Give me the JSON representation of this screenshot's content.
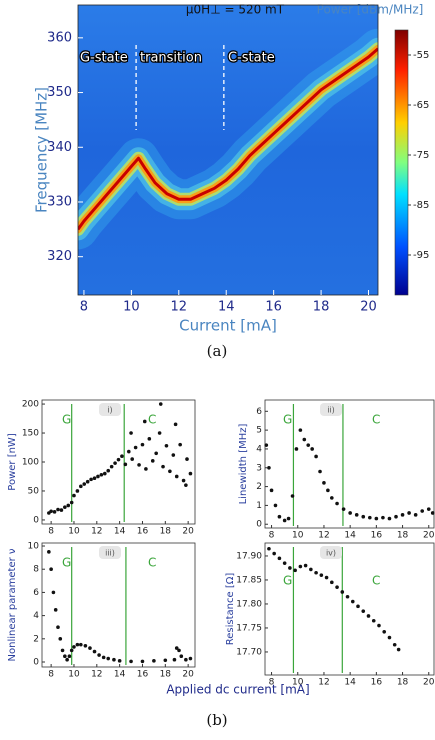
{
  "chart_data": [
    {
      "type": "heatmap",
      "title": "μ0H⊥ = 520 mT",
      "xlabel": "Current [mA]",
      "ylabel": "Frequency [MHz]",
      "x": [
        7.75,
        8,
        8.5,
        9,
        9.5,
        10,
        10.3,
        10.6,
        11,
        11.5,
        12,
        12.5,
        13,
        13.5,
        14,
        14.5,
        15,
        15.5,
        16,
        16.5,
        17,
        17.5,
        18,
        18.5,
        19,
        19.5,
        20,
        20.4
      ],
      "values": [
        325,
        326.5,
        329,
        331.5,
        334,
        336.5,
        338,
        336,
        333.5,
        331.5,
        330.5,
        330.5,
        331.5,
        332.5,
        334,
        336,
        338.5,
        340.5,
        342.5,
        344.5,
        346.5,
        348.5,
        350.5,
        352,
        353.5,
        355,
        356.5,
        358
      ],
      "xlim": [
        7.75,
        20.4
      ],
      "ylim": [
        313,
        366
      ],
      "xticks": [
        8,
        10,
        12,
        14,
        16,
        18,
        20
      ],
      "yticks": [
        320,
        330,
        340,
        350,
        360
      ],
      "annotations": [
        "G-state",
        "transition",
        "C-state"
      ],
      "boundaries": [
        10.2,
        13.9
      ],
      "colorbar": {
        "label": "Power [dBm/MHz]",
        "lim": [
          -103,
          -50
        ],
        "ticks": [
          -55,
          -65,
          -75,
          -85,
          -95
        ],
        "colormap": "jet"
      }
    },
    {
      "type": "scatter",
      "panel": "i)",
      "ylabel": "Power [nW]",
      "x": [
        7.8,
        8,
        8.3,
        8.6,
        8.9,
        9.2,
        9.5,
        9.8,
        10,
        10.3,
        10.6,
        10.9,
        11.2,
        11.5,
        11.8,
        12.1,
        12.4,
        12.7,
        13,
        13.3,
        13.6,
        13.9,
        14.2,
        14.5,
        14.8,
        15.1,
        15.4,
        15.7,
        16,
        16.3,
        16.6,
        16.9,
        17.2,
        17.5,
        17.8,
        18.1,
        18.4,
        18.7,
        19,
        19.3,
        19.6,
        19.9,
        20.2,
        15,
        16.2,
        17.6,
        18.9,
        19.8
      ],
      "values": [
        12,
        15,
        14,
        18,
        17,
        22,
        25,
        30,
        42,
        50,
        58,
        62,
        66,
        70,
        72,
        75,
        78,
        80,
        85,
        92,
        98,
        104,
        110,
        96,
        118,
        105,
        125,
        95,
        130,
        88,
        140,
        102,
        115,
        150,
        92,
        128,
        84,
        112,
        75,
        130,
        68,
        105,
        80,
        150,
        170,
        200,
        165,
        60
      ],
      "xlim": [
        7.2,
        20.6
      ],
      "ylim": [
        -7,
        207
      ],
      "xticks": [
        8,
        10,
        12,
        14,
        16,
        18,
        20
      ],
      "yticks": [
        0,
        50,
        100,
        150,
        200
      ],
      "vlines": [
        9.8,
        14.4
      ],
      "annotations": [
        "G",
        "C"
      ]
    },
    {
      "type": "scatter",
      "panel": "ii)",
      "ylabel": "Linewidth [MHz]",
      "x": [
        7.6,
        7.8,
        8,
        8.3,
        8.6,
        9,
        9.3,
        9.6,
        9.9,
        10.2,
        10.5,
        10.8,
        11.1,
        11.4,
        11.7,
        12,
        12.3,
        12.6,
        13,
        13.5,
        14,
        14.5,
        15,
        15.5,
        16,
        16.5,
        17,
        17.5,
        18,
        18.5,
        19,
        19.5,
        20,
        20.3
      ],
      "values": [
        4.2,
        3,
        1.8,
        1,
        0.4,
        0.2,
        0.3,
        1.5,
        4,
        5,
        4.5,
        4.2,
        4,
        3.6,
        2.8,
        2.2,
        1.8,
        1.4,
        1.1,
        0.8,
        0.6,
        0.5,
        0.4,
        0.35,
        0.3,
        0.35,
        0.3,
        0.4,
        0.5,
        0.6,
        0.5,
        0.7,
        0.8,
        0.6
      ],
      "xlim": [
        7.5,
        20.4
      ],
      "ylim": [
        -0.2,
        6.6
      ],
      "xticks": [
        8,
        10,
        12,
        14,
        16,
        18,
        20
      ],
      "yticks": [
        0,
        1,
        2,
        3,
        4,
        5,
        6
      ],
      "vlines": [
        9.67,
        13.45
      ],
      "annotations": [
        "G",
        "C"
      ]
    },
    {
      "type": "scatter",
      "panel": "iii)",
      "ylabel": "Nonlinear parameter ν",
      "x": [
        7.8,
        8,
        8.2,
        8.4,
        8.6,
        8.8,
        9,
        9.2,
        9.4,
        9.6,
        9.8,
        10,
        10.3,
        10.6,
        11,
        11.4,
        11.8,
        12.2,
        12.6,
        13,
        13.5,
        14,
        15,
        16,
        17,
        18,
        18.8,
        19,
        19.2,
        19.4,
        19.8,
        20.2
      ],
      "values": [
        9.5,
        8,
        6,
        4.5,
        3,
        2,
        1,
        0.5,
        0.2,
        0.5,
        1,
        1.3,
        1.5,
        1.5,
        1.4,
        1.2,
        0.9,
        0.6,
        0.4,
        0.3,
        0.2,
        0.1,
        0.05,
        0.05,
        0.1,
        0.15,
        0.2,
        1.2,
        1,
        0.5,
        0.2,
        0.3
      ],
      "xlim": [
        7.2,
        20.6
      ],
      "ylim": [
        -0.43,
        10.26
      ],
      "xticks": [
        8,
        10,
        12,
        14,
        16,
        18,
        20
      ],
      "yticks": [
        0,
        2,
        4,
        6,
        8,
        10
      ],
      "vlines": [
        9.8,
        14.55
      ],
      "annotations": [
        "G",
        "C"
      ]
    },
    {
      "type": "scatter",
      "panel": "iv)",
      "ylabel": "Resistance [Ω]",
      "x": [
        7.8,
        8.2,
        8.6,
        9,
        9.4,
        9.8,
        10.2,
        10.6,
        11,
        11.4,
        11.8,
        12.2,
        12.6,
        13,
        13.4,
        13.8,
        14.2,
        14.6,
        15,
        15.4,
        15.8,
        16.2,
        16.6,
        17,
        17.4,
        17.7
      ],
      "values": [
        17.915,
        17.905,
        17.895,
        17.885,
        17.875,
        17.87,
        17.878,
        17.88,
        17.872,
        17.865,
        17.86,
        17.855,
        17.845,
        17.835,
        17.825,
        17.815,
        17.805,
        17.795,
        17.785,
        17.775,
        17.765,
        17.755,
        17.742,
        17.73,
        17.715,
        17.705
      ],
      "xlim": [
        7.5,
        20.4
      ],
      "ylim": [
        17.652,
        17.927
      ],
      "xticks": [
        8,
        10,
        12,
        14,
        16,
        18,
        20
      ],
      "yticks": [
        {
          "value": 17.7,
          "label": "17.70"
        },
        17.75,
        {
          "value": 17.8,
          "label": "17.80"
        },
        17.85,
        {
          "value": 17.9,
          "label": "17.90"
        }
      ],
      "vlines": [
        9.67,
        13.4
      ],
      "annotations": [
        "G",
        "C"
      ]
    }
  ],
  "figure": {
    "xlabel": "Applied dc current [mA]",
    "captions": [
      "(a)",
      "(b)"
    ]
  }
}
